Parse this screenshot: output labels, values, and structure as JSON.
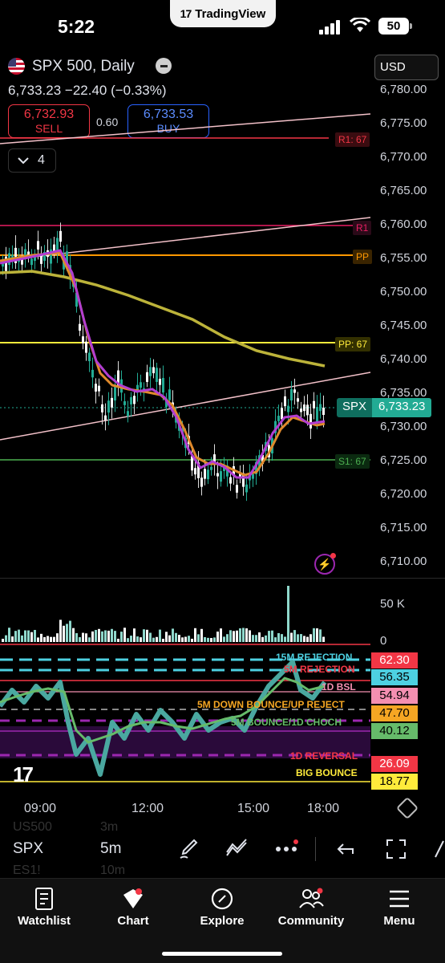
{
  "status_bar": {
    "time": "5:22",
    "app_pill": "TradingView",
    "battery": "50"
  },
  "header": {
    "symbol_title": "SPX 500, Daily",
    "price_line": "6,733.23  −22.40 (−0.33%)",
    "currency": "USD",
    "sell_price": "6,732.93",
    "sell_label": "SELL",
    "spread": "0.60",
    "buy_price": "6,733.53",
    "buy_label": "BUY",
    "collapsed_count": "4"
  },
  "price_axis": [
    "6,780.00",
    "6,775.00",
    "6,770.00",
    "6,765.00",
    "6,760.00",
    "6,755.00",
    "6,750.00",
    "6,745.00",
    "6,740.00",
    "6,735.00",
    "6,730.00",
    "6,725.00",
    "6,720.00",
    "6,715.00",
    "6,710.00"
  ],
  "level_labels": {
    "r1_top": "R1: 67",
    "r1": "R1",
    "pp": "PP",
    "pp_full": "PP: 67",
    "s1": "S1: 67"
  },
  "last_price_tag": {
    "symbol": "SPX",
    "value": "6,733.23"
  },
  "volume_axis": {
    "high": "50 K",
    "zero": "0"
  },
  "indicator": {
    "labels": [
      "15M REJECTION",
      "5M REJECTION",
      "1D BSL",
      "5M DOWN BOUNCE/UP REJECT",
      "5M BOUNCE/1D CHOCH",
      "1D REVERSAL",
      "BIG BOUNCE"
    ],
    "values": [
      "62.30",
      "56.35",
      "54.94",
      "47.70",
      "40.12",
      "26.09",
      "18.77"
    ],
    "colors": {
      "v1": "#f23645",
      "v2": "#4dd0e1",
      "v3": "#f48fb1",
      "v4": "#f5a623",
      "v5": "#66bb6a",
      "v6": "#f23645",
      "v7": "#ffeb3b"
    }
  },
  "time_axis": [
    "09:00",
    "12:00",
    "15:00",
    "18:00"
  ],
  "ghost_rows": {
    "r1_sym": "US500",
    "r1_int": "3m",
    "r2_sym": "ES1!",
    "r2_int": "10m"
  },
  "toolbar": {
    "symbol": "SPX",
    "interval": "5m"
  },
  "bottom_nav": [
    "Watchlist",
    "Chart",
    "Explore",
    "Community",
    "Menu"
  ],
  "colors": {
    "up": "#22ab94",
    "down": "#f23645",
    "accent": "#2962ff"
  }
}
